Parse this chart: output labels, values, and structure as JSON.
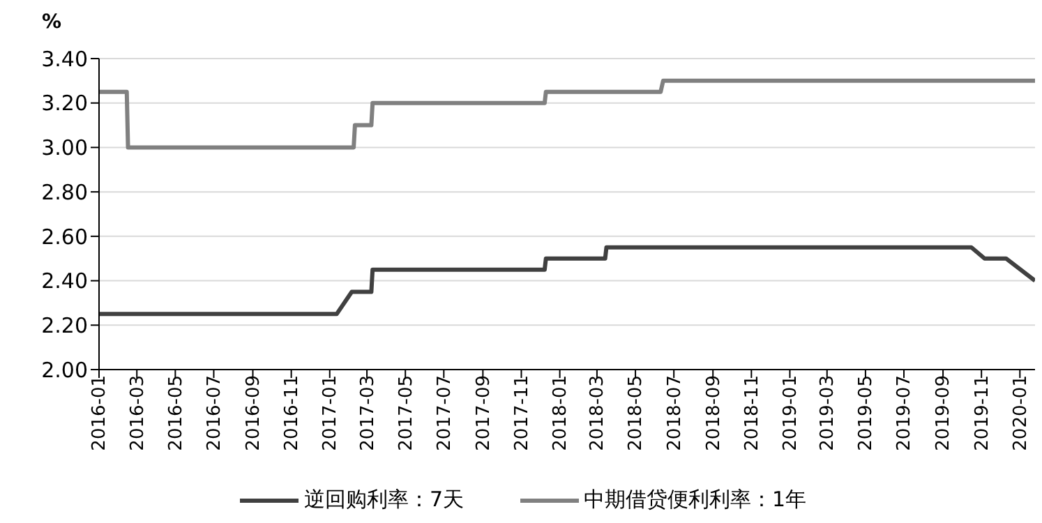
{
  "chart_data": {
    "type": "line",
    "ylabel": "%",
    "xlim": [
      "2016-01-01",
      "2020-01-25"
    ],
    "xticks": [
      "2016-01",
      "2016-03",
      "2016-05",
      "2016-07",
      "2016-09",
      "2016-11",
      "2017-01",
      "2017-03",
      "2017-05",
      "2017-07",
      "2017-09",
      "2017-11",
      "2018-01",
      "2018-03",
      "2018-05",
      "2018-07",
      "2018-09",
      "2018-11",
      "2019-01",
      "2019-03",
      "2019-05",
      "2019-07",
      "2019-09",
      "2019-11",
      "2020-01"
    ],
    "ylim": [
      2.0,
      3.4
    ],
    "yticks": [
      {
        "value": 2.0,
        "label": "2.00"
      },
      {
        "value": 2.2,
        "label": "2.20"
      },
      {
        "value": 2.4,
        "label": "2.40"
      },
      {
        "value": 2.6,
        "label": "2.60"
      },
      {
        "value": 2.8,
        "label": "2.80"
      },
      {
        "value": 3.0,
        "label": "3.00"
      },
      {
        "value": 3.2,
        "label": "3.20"
      },
      {
        "value": 3.4,
        "label": "3.40"
      }
    ],
    "grid": "y",
    "legend": "bottom",
    "marker": "none",
    "line_style": "solid",
    "series": [
      {
        "name": "逆回购利率：7天",
        "color": "#404040",
        "x": [
          "2016-01-01",
          "2017-01-12",
          "2017-02-05",
          "2017-03-08",
          "2017-03-10",
          "2017-12-08",
          "2017-12-10",
          "2018-03-14",
          "2018-03-16",
          "2019-10-16",
          "2019-11-06",
          "2019-12-10",
          "2020-01-25"
        ],
        "values": [
          2.25,
          2.25,
          2.35,
          2.35,
          2.45,
          2.45,
          2.5,
          2.5,
          2.55,
          2.55,
          2.5,
          2.5,
          2.4
        ]
      },
      {
        "name": "中期借贷便利利率：1年",
        "color": "#808080",
        "x": [
          "2016-01-01",
          "2016-02-14",
          "2016-02-16",
          "2017-02-08",
          "2017-02-10",
          "2017-03-08",
          "2017-03-10",
          "2017-12-08",
          "2017-12-10",
          "2018-06-10",
          "2018-06-14",
          "2020-01-25"
        ],
        "values": [
          3.25,
          3.25,
          3.0,
          3.0,
          3.1,
          3.1,
          3.2,
          3.2,
          3.25,
          3.25,
          3.3,
          3.3
        ]
      }
    ]
  }
}
